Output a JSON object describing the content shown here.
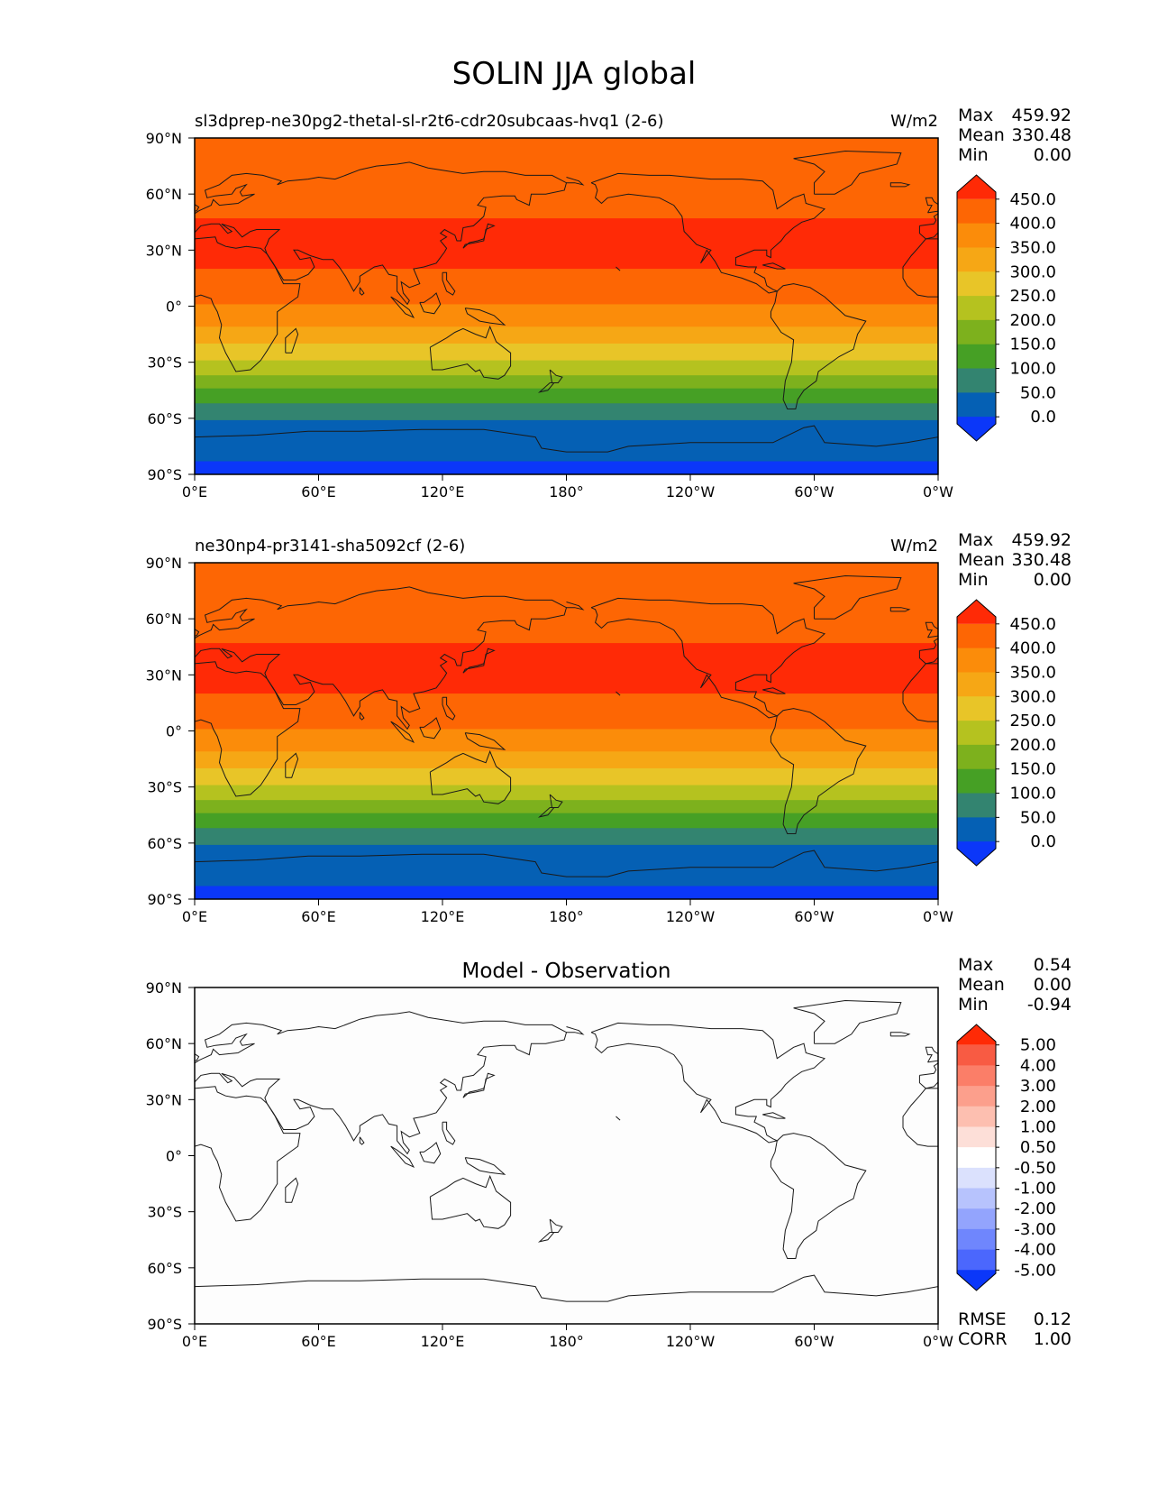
{
  "figure": {
    "title": "SOLIN JJA global",
    "lat_ticks": [
      "90°N",
      "60°N",
      "30°N",
      "0°",
      "30°S",
      "60°S",
      "90°S"
    ],
    "lon_ticks": [
      "0°E",
      "60°E",
      "120°E",
      "180°",
      "120°W",
      "60°W",
      "0°W"
    ]
  },
  "panels": [
    {
      "id": "test",
      "left_title": "sl3dprep-ne30pg2-thetal-sl-r2t6-cdr20subcaas-hvq1 (2-6)",
      "center_title": "",
      "units": "W/m2",
      "stats": [
        {
          "label": "Max",
          "value": "459.92"
        },
        {
          "label": "Mean",
          "value": "330.48"
        },
        {
          "label": "Min",
          "value": "0.00"
        }
      ],
      "colorbar": {
        "labels": [
          "450.0",
          "400.0",
          "350.0",
          "300.0",
          "250.0",
          "200.0",
          "150.0",
          "100.0",
          "50.0",
          "0.0"
        ],
        "colors": [
          "#ff2a06",
          "#fd6604",
          "#fb8c0a",
          "#f6a715",
          "#e8c528",
          "#b5c21f",
          "#7db11d",
          "#46a025",
          "#338470",
          "#0560b4",
          "#0b37f9"
        ]
      },
      "bands": [
        {
          "lat_top": 90,
          "lat_bottom": 47,
          "color": "#fd6604"
        },
        {
          "lat_top": 47,
          "lat_bottom": 20,
          "color": "#ff2a06"
        },
        {
          "lat_top": 20,
          "lat_bottom": 1,
          "color": "#fd6604"
        },
        {
          "lat_top": 1,
          "lat_bottom": -11,
          "color": "#fb8c0a"
        },
        {
          "lat_top": -11,
          "lat_bottom": -20,
          "color": "#f6a715"
        },
        {
          "lat_top": -20,
          "lat_bottom": -29,
          "color": "#e8c528"
        },
        {
          "lat_top": -29,
          "lat_bottom": -37,
          "color": "#b5c21f"
        },
        {
          "lat_top": -37,
          "lat_bottom": -44,
          "color": "#7db11d"
        },
        {
          "lat_top": -44,
          "lat_bottom": -52,
          "color": "#46a025"
        },
        {
          "lat_top": -52,
          "lat_bottom": -61,
          "color": "#338470"
        },
        {
          "lat_top": -61,
          "lat_bottom": -83,
          "color": "#0560b4"
        },
        {
          "lat_top": -83,
          "lat_bottom": -90,
          "color": "#0b37f9"
        }
      ],
      "extras": []
    },
    {
      "id": "reference",
      "left_title": "ne30np4-pr3141-sha5092cf (2-6)",
      "center_title": "",
      "units": "W/m2",
      "stats": [
        {
          "label": "Max",
          "value": "459.92"
        },
        {
          "label": "Mean",
          "value": "330.48"
        },
        {
          "label": "Min",
          "value": "0.00"
        }
      ],
      "colorbar": {
        "labels": [
          "450.0",
          "400.0",
          "350.0",
          "300.0",
          "250.0",
          "200.0",
          "150.0",
          "100.0",
          "50.0",
          "0.0"
        ],
        "colors": [
          "#ff2a06",
          "#fd6604",
          "#fb8c0a",
          "#f6a715",
          "#e8c528",
          "#b5c21f",
          "#7db11d",
          "#46a025",
          "#338470",
          "#0560b4",
          "#0b37f9"
        ]
      },
      "bands": [
        {
          "lat_top": 90,
          "lat_bottom": 47,
          "color": "#fd6604"
        },
        {
          "lat_top": 47,
          "lat_bottom": 20,
          "color": "#ff2a06"
        },
        {
          "lat_top": 20,
          "lat_bottom": 1,
          "color": "#fd6604"
        },
        {
          "lat_top": 1,
          "lat_bottom": -11,
          "color": "#fb8c0a"
        },
        {
          "lat_top": -11,
          "lat_bottom": -20,
          "color": "#f6a715"
        },
        {
          "lat_top": -20,
          "lat_bottom": -29,
          "color": "#e8c528"
        },
        {
          "lat_top": -29,
          "lat_bottom": -37,
          "color": "#b5c21f"
        },
        {
          "lat_top": -37,
          "lat_bottom": -44,
          "color": "#7db11d"
        },
        {
          "lat_top": -44,
          "lat_bottom": -52,
          "color": "#46a025"
        },
        {
          "lat_top": -52,
          "lat_bottom": -61,
          "color": "#338470"
        },
        {
          "lat_top": -61,
          "lat_bottom": -83,
          "color": "#0560b4"
        },
        {
          "lat_top": -83,
          "lat_bottom": -90,
          "color": "#0b37f9"
        }
      ],
      "extras": []
    },
    {
      "id": "difference",
      "left_title": "",
      "center_title": "Model - Observation",
      "units": "",
      "stats": [
        {
          "label": "Max",
          "value": "0.54"
        },
        {
          "label": "Mean",
          "value": "0.00"
        },
        {
          "label": "Min",
          "value": "-0.94"
        }
      ],
      "colorbar": {
        "labels": [
          "5.00",
          "4.00",
          "3.00",
          "2.00",
          "1.00",
          "0.50",
          "-0.50",
          "-1.00",
          "-2.00",
          "-3.00",
          "-4.00",
          "-5.00"
        ],
        "colors": [
          "#ff2a06",
          "#f85b43",
          "#fb7e68",
          "#fc9f8c",
          "#fdbfb0",
          "#fddfd8",
          "#ffffff",
          "#dbe1fd",
          "#b7c3fd",
          "#93a4fd",
          "#6f86fd",
          "#4b67fd",
          "#0b37f9"
        ]
      },
      "bands": [
        {
          "lat_top": 90,
          "lat_bottom": -90,
          "color": "#fdfdfd"
        }
      ],
      "extras": [
        {
          "label": "RMSE",
          "value": "0.12"
        },
        {
          "label": "CORR",
          "value": "1.00"
        }
      ]
    }
  ]
}
